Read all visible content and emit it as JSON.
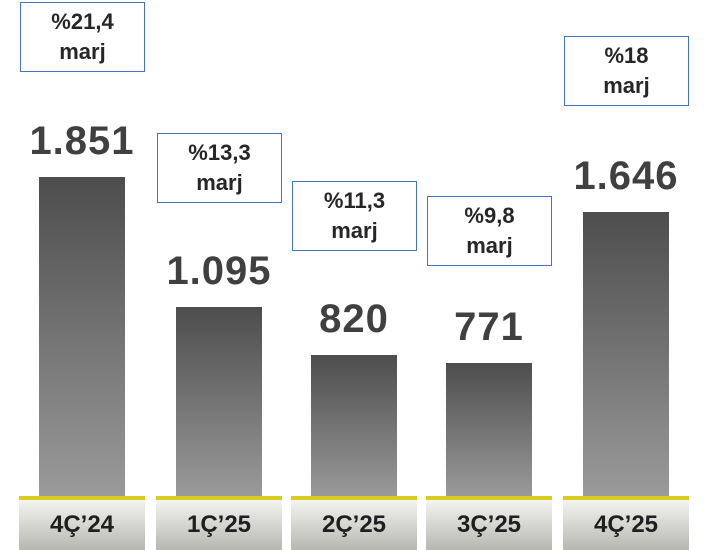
{
  "chart_data": {
    "type": "bar",
    "categories": [
      "4Ç’24",
      "1Ç’25",
      "2Ç’25",
      "3Ç’25",
      "4Ç’25"
    ],
    "values": [
      1851,
      1095,
      820,
      771,
      1646
    ],
    "value_labels": [
      "1.851",
      "1.095",
      "820",
      "771",
      "1.646"
    ],
    "margin_labels": [
      [
        "%21,4",
        "marj"
      ],
      [
        "%13,3",
        "marj"
      ],
      [
        "%11,3",
        "marj"
      ],
      [
        "%9,8",
        "marj"
      ],
      [
        "%18",
        "marj"
      ]
    ],
    "ylim": [
      0,
      1851
    ],
    "grid": false,
    "colors": {
      "bar_top": "#4d4d4d",
      "bar_bottom": "#9a9a9a",
      "box_border": "#4472c4",
      "base_accent": "#d6cd1e",
      "label_text": "#404040"
    }
  }
}
